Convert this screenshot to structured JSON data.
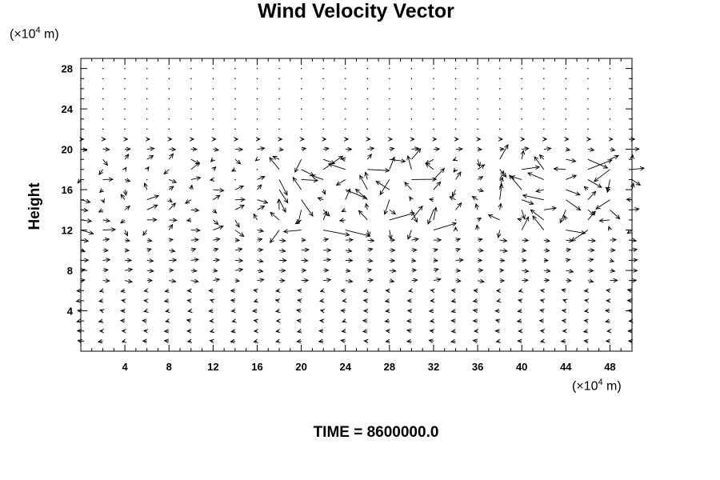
{
  "chart_data": {
    "type": "vector-field",
    "title": "Wind Velocity Vector",
    "ylabel": "Height",
    "xlabel": "",
    "x_unit": "(×10",
    "y_unit": "(×10",
    "unit_exponent": "4",
    "unit_suffix": " m)",
    "xlim": [
      0,
      50
    ],
    "ylim": [
      0,
      29
    ],
    "x_ticks": [
      4,
      8,
      12,
      16,
      20,
      24,
      28,
      32,
      36,
      40,
      44,
      48
    ],
    "y_ticks": [
      4,
      8,
      12,
      16,
      20,
      24,
      28
    ],
    "x_tick_labels": [
      "4",
      "8",
      "12",
      "16",
      "20",
      "24",
      "28",
      "32",
      "36",
      "40",
      "44",
      "48"
    ],
    "y_tick_labels": [
      "4",
      "8",
      "12",
      "16",
      "20",
      "24",
      "28"
    ],
    "grid": false,
    "legend": "none",
    "grid_spacing": {
      "dx": 2,
      "dy": 1
    },
    "field_description": "Vector arrows on a regular 2 x 1 (x10^4 m) grid. Small westward arrows near the surface (heights 0-7), eastward flow at heights 7-11, strong disordered/turbulent vectors between heights 12 and 20 (largest between x=18-32 and x=38-48), near-calm dots above height 21.",
    "sample_vectors": [
      {
        "x": 20,
        "y": 19,
        "u": 2.8,
        "v": 0.0
      },
      {
        "x": 24,
        "y": 20,
        "u": -1.0,
        "v": -1.8
      },
      {
        "x": 26,
        "y": 11,
        "u": 2.5,
        "v": 0.0
      },
      {
        "x": 40,
        "y": 11,
        "u": 2.5,
        "v": 0.0
      },
      {
        "x": 44,
        "y": 16,
        "u": -1.5,
        "v": -0.8
      },
      {
        "x": 6,
        "y": 9,
        "u": 0.6,
        "v": 0.0
      },
      {
        "x": 10,
        "y": 2,
        "u": -0.4,
        "v": 0.0
      }
    ],
    "footer": "TIME = 8600000.0"
  }
}
